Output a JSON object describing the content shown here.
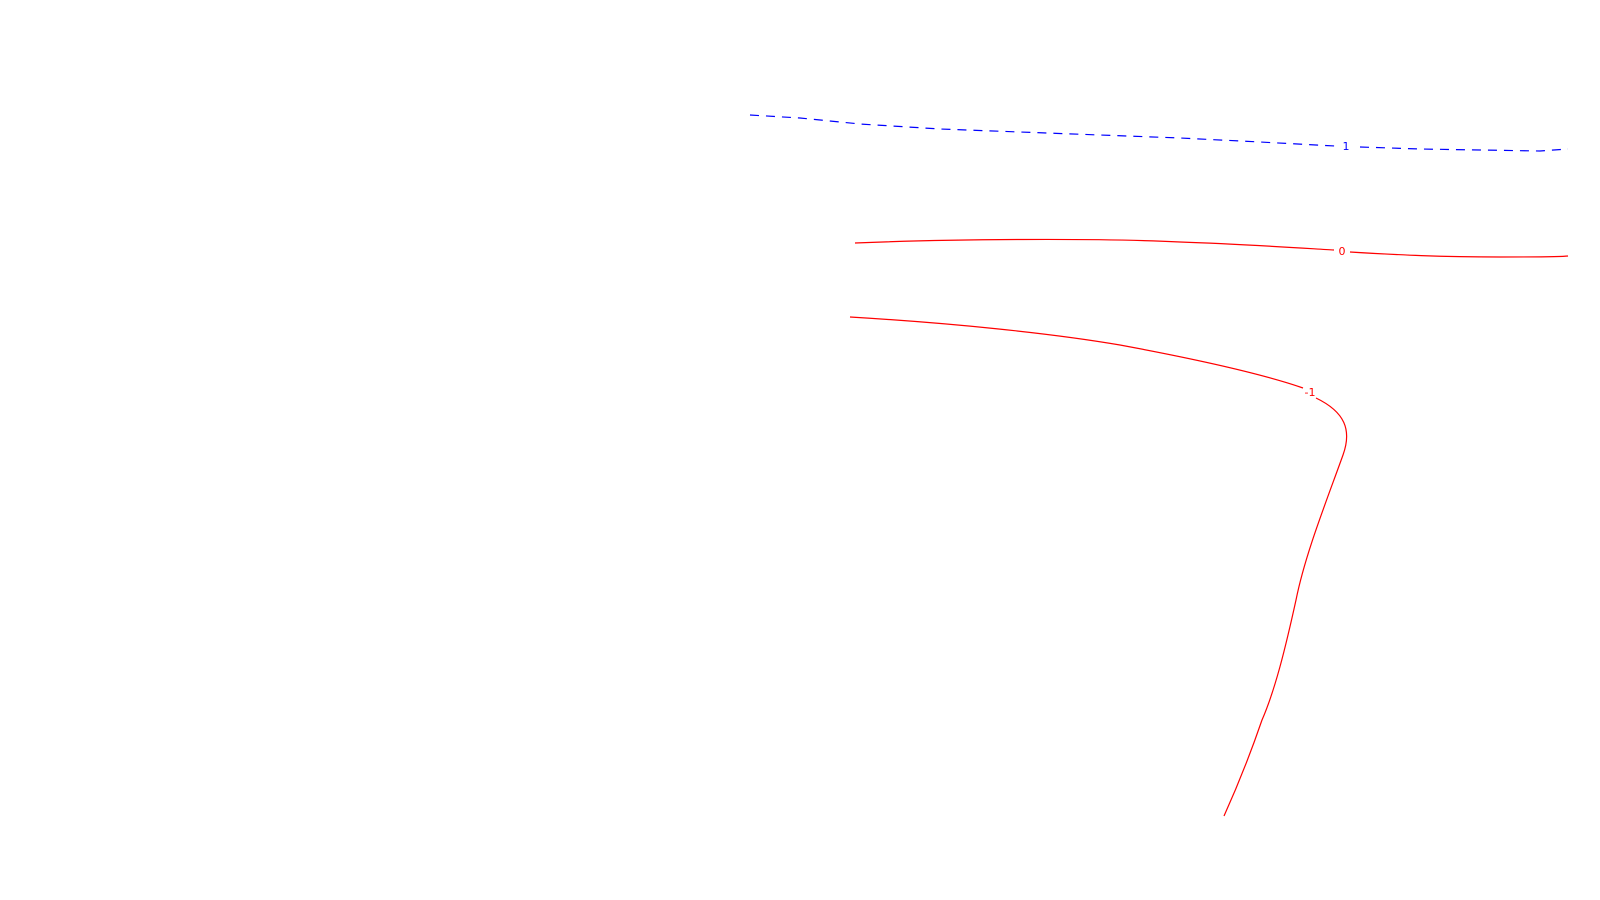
{
  "chart_data": {
    "type": "contour",
    "colors": {
      "upper_dashed": "#0000ff",
      "solid": "#ff0000",
      "background": "#ffffff"
    },
    "contours": [
      {
        "id": "contour-blue-1",
        "level_label": "1",
        "style": "dashed",
        "color": "#0000ff"
      },
      {
        "id": "contour-red-0",
        "level_label": "0",
        "style": "solid",
        "color": "#ff0000"
      },
      {
        "id": "contour-red-neg1",
        "level_label": "-1",
        "style": "solid",
        "color": "#ff0000"
      }
    ]
  }
}
